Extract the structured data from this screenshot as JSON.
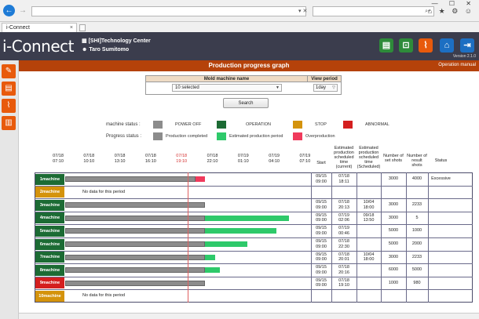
{
  "browser": {
    "tab_title": "i-Connect",
    "tab_close": "×",
    "back": "←",
    "forward": "→",
    "addr_actions": "▾ ✕",
    "search_icon": "⌕▾",
    "toolbar_icons": "⌂ ★ ⚙ ☺",
    "window_controls": "— ☐ ✕"
  },
  "header": {
    "logo": "i-Connect",
    "org": "[SHI]Technology Center",
    "user": "Taro Sumitomo",
    "version": "Version 2.1.0",
    "icons": [
      {
        "name": "report-icon",
        "color": "#2e8b3a",
        "glyph": "▤"
      },
      {
        "name": "unlock-icon",
        "color": "#2e8b3a",
        "glyph": "⊡"
      },
      {
        "name": "chart-icon",
        "color": "#e85a0c",
        "glyph": "⌇"
      },
      {
        "name": "home-icon",
        "color": "#1d6fc2",
        "glyph": "⌂"
      },
      {
        "name": "logout-icon",
        "color": "#1d6fc2",
        "glyph": "⇥"
      }
    ]
  },
  "sidebar": {
    "icons": [
      {
        "name": "tools-icon",
        "glyph": "✎"
      },
      {
        "name": "document-icon",
        "glyph": "▤"
      },
      {
        "name": "line-chart-icon",
        "glyph": "⌇"
      },
      {
        "name": "bar-chart-icon",
        "glyph": "▥"
      }
    ]
  },
  "page": {
    "title": "Production progress graph",
    "manual": "Operation manual"
  },
  "filter": {
    "mold_label": "Mold machine name",
    "mold_value": "10 selected",
    "period_label": "View period",
    "period_value": "1day",
    "search_label": "Search"
  },
  "legend": {
    "machine_status_label": "machine status :",
    "progress_status_label": "Progress status :",
    "machine_items": [
      {
        "label": "POWER OFF",
        "color": "#8c8c8c"
      },
      {
        "label": "OPERATION",
        "color": "#1c6b34"
      },
      {
        "label": "STOP",
        "color": "#d4930c"
      },
      {
        "label": "ABNORMAL",
        "color": "#d41f1f"
      }
    ],
    "progress_items": [
      {
        "label": "Production completed",
        "color": "#8c8c8c"
      },
      {
        "label": "Estimated production period",
        "color": "#2ec96a"
      },
      {
        "label": "Overproduction",
        "color": "#f03a5c"
      }
    ]
  },
  "table": {
    "time_ticks": [
      {
        "date": "07/18",
        "time": "07:10",
        "highlight": false
      },
      {
        "date": "07/18",
        "time": "10:10",
        "highlight": false
      },
      {
        "date": "07/18",
        "time": "13:10",
        "highlight": false
      },
      {
        "date": "07/18",
        "time": "16:10",
        "highlight": false
      },
      {
        "date": "07/18",
        "time": "19:10",
        "highlight": true
      },
      {
        "date": "07/18",
        "time": "22:10",
        "highlight": false
      },
      {
        "date": "07/19",
        "time": "01:10",
        "highlight": false
      },
      {
        "date": "07/19",
        "time": "04:10",
        "highlight": false
      },
      {
        "date": "07/19",
        "time": "07:10",
        "highlight": false
      }
    ],
    "col_headers": {
      "start": "Start",
      "est_current": "Estimated production scheduled time (current)",
      "est_scheduled": "Estimated production scheduled time (Scheduled)",
      "set_shots": "Number of set shots",
      "result_shots": "Number of result shots",
      "status": "Status"
    },
    "rows": [
      {
        "machine": "1machine",
        "color": "#1c6b34",
        "nodata": "",
        "gray": [
          0,
          0.53
        ],
        "green": null,
        "red": [
          0.53,
          0.57
        ],
        "start": "09/15 09:00",
        "est_current": "07/18 18:11",
        "est_scheduled": "",
        "set": "3000",
        "result": "4000",
        "status": "Excessive"
      },
      {
        "machine": "2machine",
        "color": "#d4930c",
        "nodata": "No data for this period",
        "gray": null,
        "green": null,
        "red": null,
        "start": "",
        "est_current": "",
        "est_scheduled": "",
        "set": "",
        "result": "",
        "status": ""
      },
      {
        "machine": "3machine",
        "color": "#1c6b34",
        "nodata": "",
        "gray": [
          0,
          0.57
        ],
        "green": null,
        "red": null,
        "start": "09/15 09:00",
        "est_current": "07/18 20:13",
        "est_scheduled": "10/04 18:00",
        "set": "3000",
        "result": "2233",
        "status": ""
      },
      {
        "machine": "4machine",
        "color": "#1c6b34",
        "nodata": "",
        "gray": [
          0,
          0.57
        ],
        "green": [
          0.57,
          0.91
        ],
        "red": null,
        "start": "09/15 09:00",
        "est_current": "07/19 02:06",
        "est_scheduled": "09/18 13:50",
        "set": "3000",
        "result": "5",
        "status": ""
      },
      {
        "machine": "5machine",
        "color": "#1c6b34",
        "nodata": "",
        "gray": [
          0,
          0.57
        ],
        "green": [
          0.57,
          0.86
        ],
        "red": null,
        "start": "09/15 09:00",
        "est_current": "07/19 00:46",
        "est_scheduled": "",
        "set": "5000",
        "result": "1000",
        "status": ""
      },
      {
        "machine": "6machine",
        "color": "#1c6b34",
        "nodata": "",
        "gray": [
          0,
          0.57
        ],
        "green": [
          0.57,
          0.74
        ],
        "red": null,
        "start": "09/15 09:00",
        "est_current": "07/18 22:30",
        "est_scheduled": "",
        "set": "5000",
        "result": "2000",
        "status": ""
      },
      {
        "machine": "7machine",
        "color": "#1c6b34",
        "nodata": "",
        "gray": [
          0,
          0.57
        ],
        "green": [
          0.57,
          0.61
        ],
        "red": null,
        "start": "09/15 09:00",
        "est_current": "07/18 20:01",
        "est_scheduled": "10/04 18:00",
        "set": "3000",
        "result": "2233",
        "status": ""
      },
      {
        "machine": "8machine",
        "color": "#1c6b34",
        "nodata": "",
        "gray": [
          0,
          0.57
        ],
        "green": [
          0.57,
          0.63
        ],
        "red": null,
        "start": "09/15 09:00",
        "est_current": "07/18 20:16",
        "est_scheduled": "",
        "set": "6000",
        "result": "5000",
        "status": ""
      },
      {
        "machine": "9machine",
        "color": "#d41f1f",
        "nodata": "",
        "gray": [
          0,
          0.57
        ],
        "green": null,
        "red": null,
        "start": "09/15 09:00",
        "est_current": "07/18 19:10",
        "est_scheduled": "",
        "set": "1000",
        "result": "980",
        "status": ""
      },
      {
        "machine": "10machine",
        "color": "#d4930c",
        "nodata": "No data for this period",
        "gray": null,
        "green": null,
        "red": null,
        "start": "",
        "est_current": "",
        "est_scheduled": "",
        "set": "",
        "result": "",
        "status": ""
      }
    ]
  }
}
